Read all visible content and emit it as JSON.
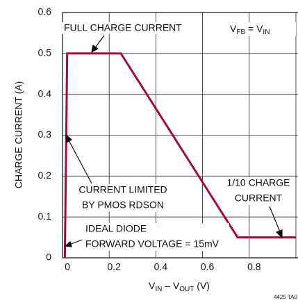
{
  "chart_data": {
    "type": "line",
    "x": [
      0.01,
      0.02,
      0.25,
      0.75,
      1.0
    ],
    "values": [
      0,
      0.5,
      0.5,
      0.05,
      0.05
    ],
    "color": "#a8083e",
    "xlim": [
      0,
      1
    ],
    "xticks": [
      0,
      0.2,
      0.4,
      0.6,
      0.8,
      1.0
    ],
    "xtick_labels_shown": [
      0,
      0.2,
      0.4,
      0.6,
      0.8
    ],
    "ylim": [
      0,
      0.6
    ],
    "yticks": [
      0,
      0.1,
      0.2,
      0.3,
      0.4,
      0.5,
      0.6
    ],
    "grid": true,
    "y_label": "CHARGE CURRENT (A)",
    "x_label": [
      "V",
      "IN",
      " – V",
      "OUT",
      " (V)"
    ],
    "vfb_label": [
      "V",
      "FB",
      " = V",
      "IN"
    ],
    "annotations": [
      "FULL CHARGE CURRENT",
      "CURRENT LIMITED",
      "BY PMOS RDSON",
      "1/10 CHARGE",
      "CURRENT",
      "IDEAL DIODE",
      "FORWARD VOLTAGE = 15mV"
    ],
    "figure_code": "4425 TA0"
  }
}
